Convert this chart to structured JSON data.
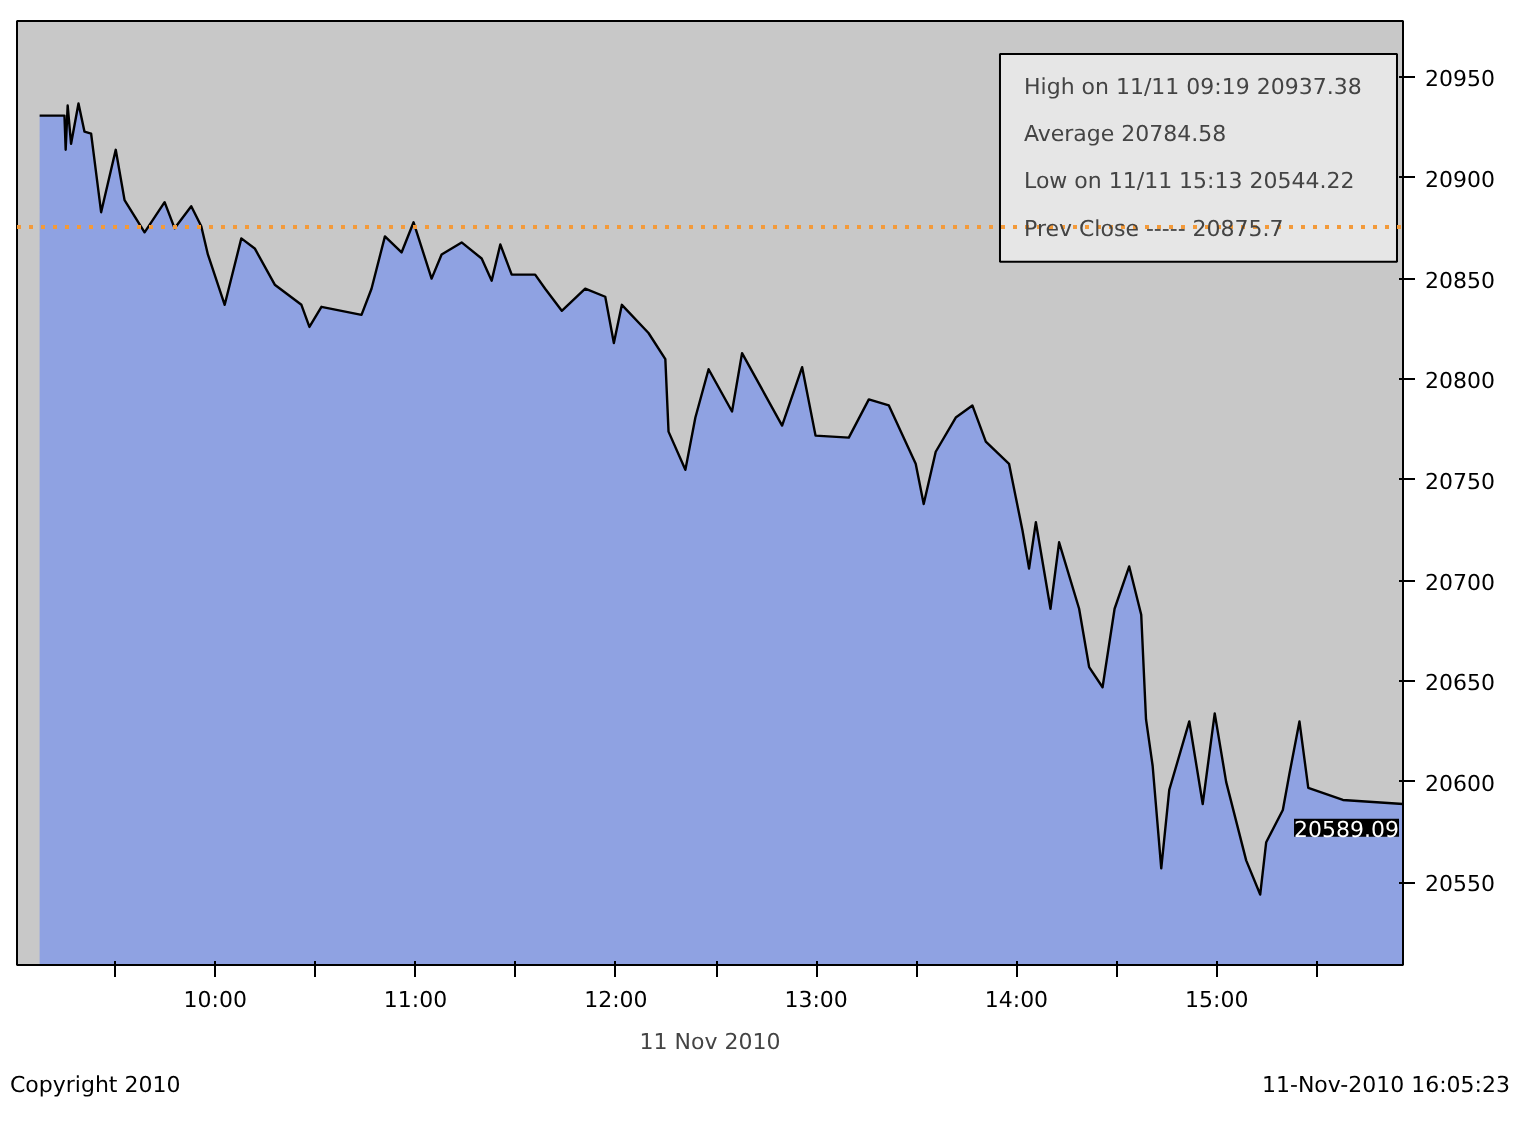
{
  "chart_data": {
    "type": "area",
    "xlabel": "11 Nov 2010",
    "x": [
      9.123,
      9.247,
      9.253,
      9.263,
      9.28,
      9.317,
      9.347,
      9.38,
      9.43,
      9.463,
      9.503,
      9.547,
      9.647,
      9.747,
      9.797,
      9.88,
      9.93,
      9.963,
      10.047,
      10.13,
      10.197,
      10.297,
      10.43,
      10.47,
      10.53,
      10.73,
      10.78,
      10.847,
      10.93,
      10.99,
      11.08,
      11.13,
      11.23,
      11.33,
      11.38,
      11.423,
      11.48,
      11.597,
      11.647,
      11.73,
      11.847,
      11.947,
      11.99,
      12.03,
      12.163,
      12.247,
      12.263,
      12.347,
      12.397,
      12.463,
      12.58,
      12.63,
      12.83,
      12.93,
      12.997,
      13.163,
      13.263,
      13.363,
      13.497,
      13.537,
      13.597,
      13.697,
      13.78,
      13.847,
      13.963,
      14.03,
      14.063,
      14.097,
      14.17,
      14.213,
      14.313,
      14.363,
      14.43,
      14.49,
      14.563,
      14.623,
      14.647,
      14.68,
      14.723,
      14.763,
      14.863,
      14.93,
      14.99,
      15.047,
      15.147,
      15.217,
      15.247,
      15.33,
      15.363,
      15.413,
      15.457,
      15.63,
      15.93
    ],
    "series": [
      {
        "color": "#8fa2e2",
        "values": [
          20931,
          20931,
          20914,
          20936,
          20917,
          20937,
          20923,
          20922,
          20883,
          20897,
          20914,
          20889,
          20873,
          20888,
          20875,
          20886,
          20876,
          20862,
          20837,
          20870,
          20865,
          20847,
          20837,
          20826,
          20836,
          20832,
          20845,
          20871,
          20863,
          20878,
          20850,
          20862,
          20868,
          20860,
          20849,
          20867,
          20852,
          20852,
          20845,
          20834,
          20845,
          20841,
          20818,
          20837,
          20823,
          20810,
          20774,
          20755,
          20781,
          20805,
          20784,
          20813,
          20777,
          20806,
          20772,
          20771,
          20790,
          20787,
          20758,
          20738,
          20764,
          20781,
          20787,
          20769,
          20758,
          20725,
          20706,
          20729,
          20686,
          20719,
          20686,
          20657,
          20647,
          20686,
          20707,
          20683,
          20631,
          20608,
          20557,
          20596,
          20630,
          20589,
          20634,
          20600,
          20561,
          20544,
          20570,
          20586,
          20604,
          20630,
          20597,
          20591,
          20589
        ]
      }
    ],
    "xlim": [
      9.01,
      15.93
    ],
    "ylim": [
      20509,
      20978
    ],
    "xticks": [
      {
        "value": 9.5,
        "label": null
      },
      {
        "value": 10,
        "label": "10:00"
      },
      {
        "value": 10.5,
        "label": null
      },
      {
        "value": 11,
        "label": "11:00"
      },
      {
        "value": 11.5,
        "label": null
      },
      {
        "value": 12,
        "label": "12:00"
      },
      {
        "value": 12.5,
        "label": null
      },
      {
        "value": 13,
        "label": "13:00"
      },
      {
        "value": 13.5,
        "label": null
      },
      {
        "value": 14,
        "label": "14:00"
      },
      {
        "value": 14.5,
        "label": null
      },
      {
        "value": 15,
        "label": "15:00"
      },
      {
        "value": 15.5,
        "label": null
      }
    ],
    "yticks": [
      20550,
      20600,
      20650,
      20700,
      20750,
      20800,
      20850,
      20900,
      20950
    ],
    "ref_lines": [
      {
        "axis": "y",
        "value": 20875.7,
        "label": "Prev Close -----   20875.7",
        "color": "#f39a3a",
        "line_style": "dotted"
      }
    ],
    "annotations": [
      "High on 11/11 09:19   20937.38",
      "Average   20784.58",
      "Low on 11/11 15:13   20544.22",
      {
        "text": "20589.09",
        "x": 15.93,
        "y": 20589.09
      },
      "Copyright 2010",
      "11-Nov-2010 16:05:23"
    ],
    "grid": false
  }
}
